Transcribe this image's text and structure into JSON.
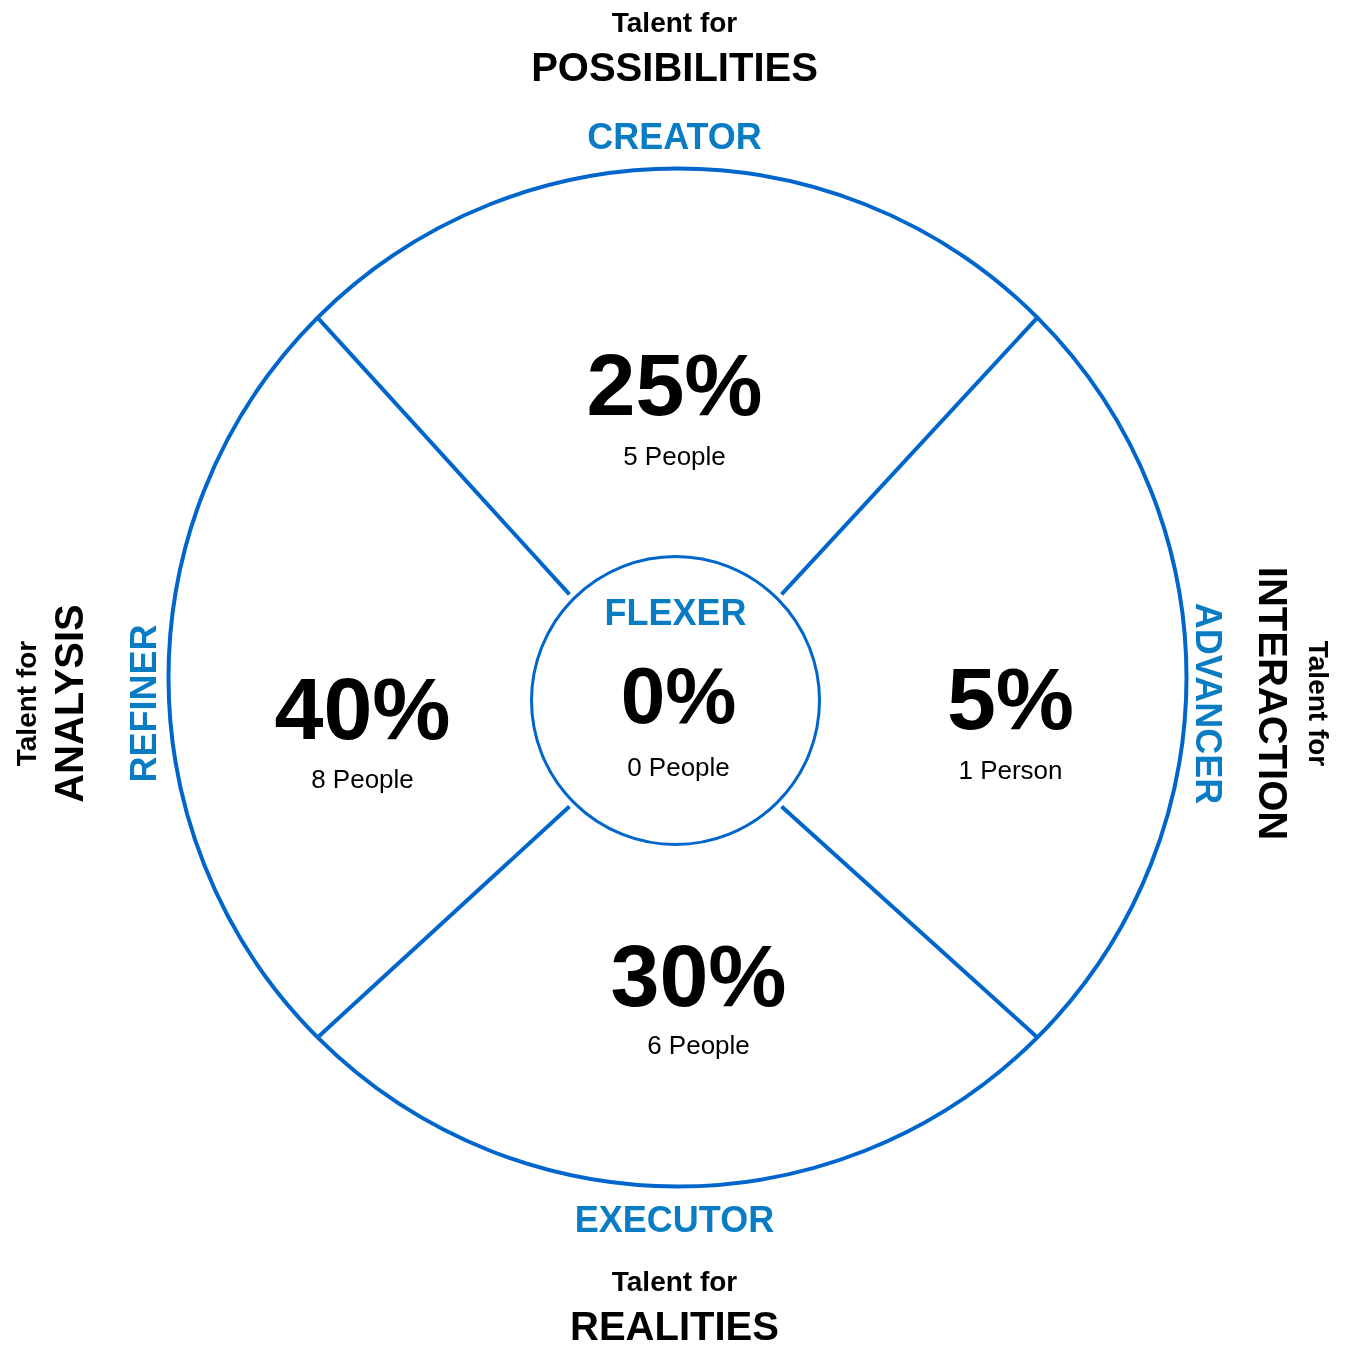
{
  "chart_data": {
    "type": "other",
    "categories": [
      "CREATOR",
      "ADVANCER",
      "EXECUTOR",
      "REFINER",
      "FLEXER"
    ],
    "values": [
      25,
      5,
      30,
      40,
      0
    ],
    "value_labels": [
      "25%",
      "5%",
      "30%",
      "40%",
      "0%"
    ],
    "color": "#0066cc",
    "colors": [
      "#0a7cc4",
      "#0a7cc4",
      "#0a7cc4",
      "#0a7cc4",
      "#0a7cc4"
    ],
    "annotations": [
      "5 People",
      "1 Person",
      "6 People",
      "8 People",
      "0 People",
      "Talent for",
      "POSSIBILITIES",
      "Talent for",
      "INTERACTION",
      "Talent for",
      "REALITIES",
      "Talent for",
      "ANALYSIS"
    ]
  }
}
